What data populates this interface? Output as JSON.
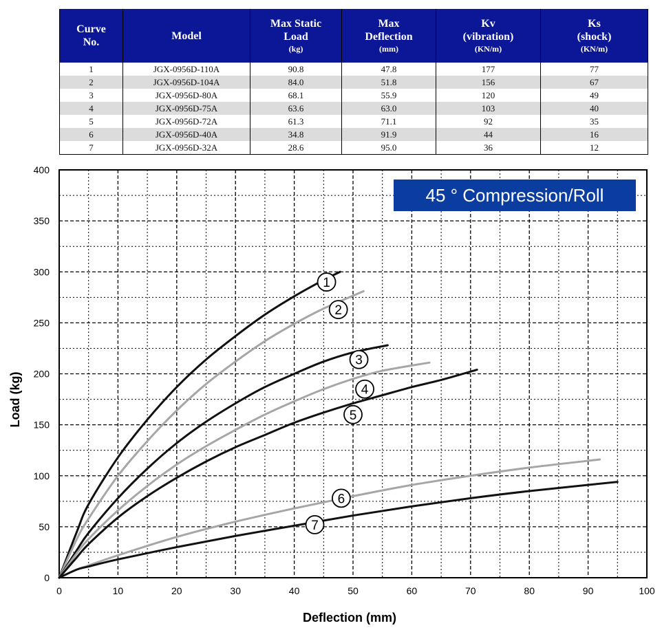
{
  "table": {
    "headers": [
      {
        "label": "Curve",
        "label2": "No.",
        "unit": ""
      },
      {
        "label": "Model",
        "label2": "",
        "unit": ""
      },
      {
        "label": "Max Static",
        "label2": "Load",
        "unit": "(kg)"
      },
      {
        "label": "Max",
        "label2": "Deflection",
        "unit": "(mm)"
      },
      {
        "label": "Kv",
        "label2": "(vibration)",
        "unit": "(KN/m)"
      },
      {
        "label": "Ks",
        "label2": "(shock)",
        "unit": "(KN/m)"
      }
    ],
    "rows": [
      [
        "1",
        "JGX-0956D-110A",
        "90.8",
        "47.8",
        "177",
        "77"
      ],
      [
        "2",
        "JGX-0956D-104A",
        "84.0",
        "51.8",
        "156",
        "67"
      ],
      [
        "3",
        "JGX-0956D-80A",
        "68.1",
        "55.9",
        "120",
        "49"
      ],
      [
        "4",
        "JGX-0956D-75A",
        "63.6",
        "63.0",
        "103",
        "40"
      ],
      [
        "5",
        "JGX-0956D-72A",
        "61.3",
        "71.1",
        "92",
        "35"
      ],
      [
        "6",
        "JGX-0956D-40A",
        "34.8",
        "91.9",
        "44",
        "16"
      ],
      [
        "7",
        "JGX-0956D-32A",
        "28.6",
        "95.0",
        "36",
        "12"
      ]
    ]
  },
  "chart_data": {
    "type": "line",
    "title": "45 ° Compression/Roll",
    "xlabel": "Deflection (mm)",
    "ylabel": "Load (kg)",
    "xlim": [
      0,
      100
    ],
    "ylim": [
      0,
      400
    ],
    "x_ticks": [
      "0",
      "10",
      "20",
      "30",
      "40",
      "50",
      "60",
      "70",
      "80",
      "90",
      "100"
    ],
    "y_ticks": [
      "0",
      "50",
      "100",
      "150",
      "200",
      "250",
      "300",
      "350",
      "400"
    ],
    "grid": true,
    "series": [
      {
        "name": "1",
        "color": "#111111",
        "points": [
          [
            0,
            0
          ],
          [
            3,
            45
          ],
          [
            5,
            72
          ],
          [
            10,
            118
          ],
          [
            15,
            155
          ],
          [
            20,
            187
          ],
          [
            25,
            214
          ],
          [
            30,
            237
          ],
          [
            35,
            258
          ],
          [
            40,
            276
          ],
          [
            45,
            292
          ],
          [
            47.8,
            300
          ]
        ],
        "label_at": [
          45.5,
          290
        ]
      },
      {
        "name": "2",
        "color": "#a6a6a6",
        "points": [
          [
            0,
            0
          ],
          [
            3,
            38
          ],
          [
            5,
            58
          ],
          [
            10,
            100
          ],
          [
            15,
            134
          ],
          [
            20,
            164
          ],
          [
            25,
            190
          ],
          [
            30,
            212
          ],
          [
            35,
            232
          ],
          [
            40,
            249
          ],
          [
            45,
            264
          ],
          [
            51.8,
            281
          ]
        ],
        "label_at": [
          47.5,
          263
        ]
      },
      {
        "name": "3",
        "color": "#111111",
        "points": [
          [
            0,
            0
          ],
          [
            3,
            27
          ],
          [
            5,
            44
          ],
          [
            10,
            78
          ],
          [
            15,
            107
          ],
          [
            20,
            132
          ],
          [
            25,
            153
          ],
          [
            30,
            171
          ],
          [
            35,
            187
          ],
          [
            40,
            200
          ],
          [
            45,
            212
          ],
          [
            50,
            221
          ],
          [
            55.9,
            228
          ]
        ],
        "label_at": [
          51,
          214
        ]
      },
      {
        "name": "4",
        "color": "#a6a6a6",
        "points": [
          [
            0,
            0
          ],
          [
            3,
            24
          ],
          [
            5,
            38
          ],
          [
            10,
            66
          ],
          [
            15,
            90
          ],
          [
            20,
            111
          ],
          [
            25,
            129
          ],
          [
            30,
            145
          ],
          [
            35,
            160
          ],
          [
            40,
            173
          ],
          [
            45,
            185
          ],
          [
            50,
            195
          ],
          [
            55,
            203
          ],
          [
            63,
            211
          ]
        ],
        "label_at": [
          52,
          185
        ]
      },
      {
        "name": "5",
        "color": "#111111",
        "points": [
          [
            0,
            0
          ],
          [
            3,
            20
          ],
          [
            5,
            33
          ],
          [
            10,
            59
          ],
          [
            15,
            80
          ],
          [
            20,
            98
          ],
          [
            25,
            114
          ],
          [
            30,
            128
          ],
          [
            35,
            140
          ],
          [
            40,
            152
          ],
          [
            45,
            162
          ],
          [
            50,
            171
          ],
          [
            55,
            179
          ],
          [
            60,
            187
          ],
          [
            65,
            194
          ],
          [
            71.1,
            204
          ]
        ],
        "label_at": [
          50,
          160
        ]
      },
      {
        "name": "6",
        "color": "#a6a6a6",
        "points": [
          [
            0,
            0
          ],
          [
            3,
            8
          ],
          [
            5,
            12
          ],
          [
            10,
            22
          ],
          [
            20,
            40
          ],
          [
            30,
            55
          ],
          [
            40,
            68
          ],
          [
            50,
            80
          ],
          [
            60,
            91
          ],
          [
            70,
            100
          ],
          [
            80,
            108
          ],
          [
            92,
            116
          ]
        ],
        "label_at": [
          48,
          78
        ]
      },
      {
        "name": "7",
        "color": "#111111",
        "points": [
          [
            0,
            0
          ],
          [
            3,
            8
          ],
          [
            5,
            11
          ],
          [
            10,
            18
          ],
          [
            20,
            30
          ],
          [
            30,
            41
          ],
          [
            40,
            51
          ],
          [
            50,
            61
          ],
          [
            60,
            70
          ],
          [
            70,
            78
          ],
          [
            80,
            85
          ],
          [
            95,
            94
          ]
        ],
        "label_at": [
          43.5,
          52
        ]
      }
    ]
  }
}
